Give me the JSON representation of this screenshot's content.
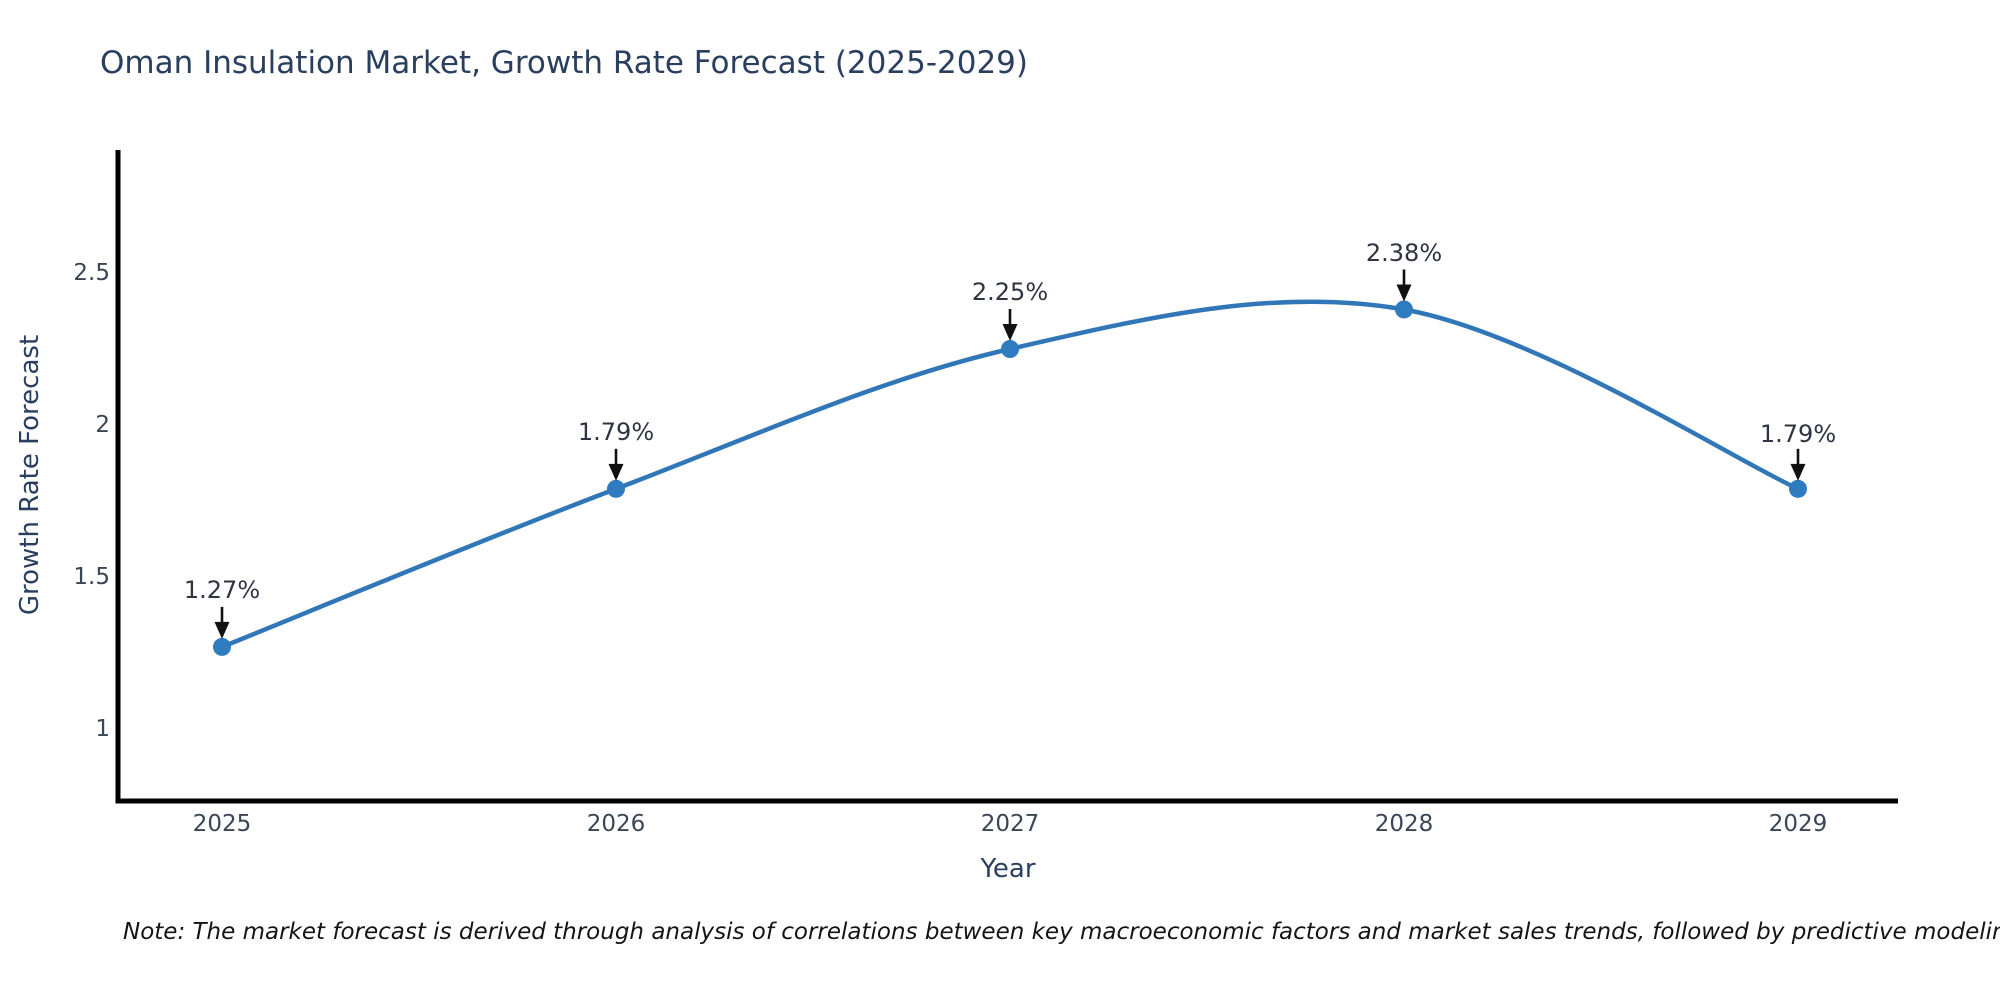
{
  "title": "Oman Insulation Market, Growth Rate Forecast (2025-2029)",
  "note": "Note: The market forecast is derived through analysis of correlations between key macroeconomic factors and market sales trends, followed by predictive modeling to project future sales",
  "chart_data": {
    "type": "line",
    "title": "Oman Insulation Market, Growth Rate Forecast (2025-2029)",
    "xlabel": "Year",
    "ylabel": "Growth Rate Forecast",
    "x": [
      2025,
      2026,
      2027,
      2028,
      2029
    ],
    "series": [
      {
        "name": "Growth Rate Forecast",
        "values": [
          1.27,
          1.79,
          2.25,
          2.38,
          1.79
        ]
      }
    ],
    "point_labels": [
      "1.27%",
      "1.79%",
      "2.25%",
      "2.38%",
      "1.79%"
    ],
    "xtick_labels": [
      "2025",
      "2026",
      "2027",
      "2028",
      "2029"
    ],
    "ytick_labels": [
      "2.5",
      "2",
      "1.5",
      "1"
    ],
    "yticks": [
      2.5,
      2,
      1.5,
      1
    ],
    "ylim": [
      0.76,
      2.9
    ],
    "xlim": [
      2024.74,
      2029.25
    ],
    "grid": false,
    "legend_position": "none",
    "smooth_line": true,
    "annotation_style": "black-arrow-above-point",
    "colors": {
      "line": "#3177b8",
      "marker": "#2e7bc0",
      "axis": "#000000",
      "title": "#2a3f5f",
      "tick": "#3a4556",
      "annotation": "#2e3440",
      "note": "#141414"
    }
  }
}
